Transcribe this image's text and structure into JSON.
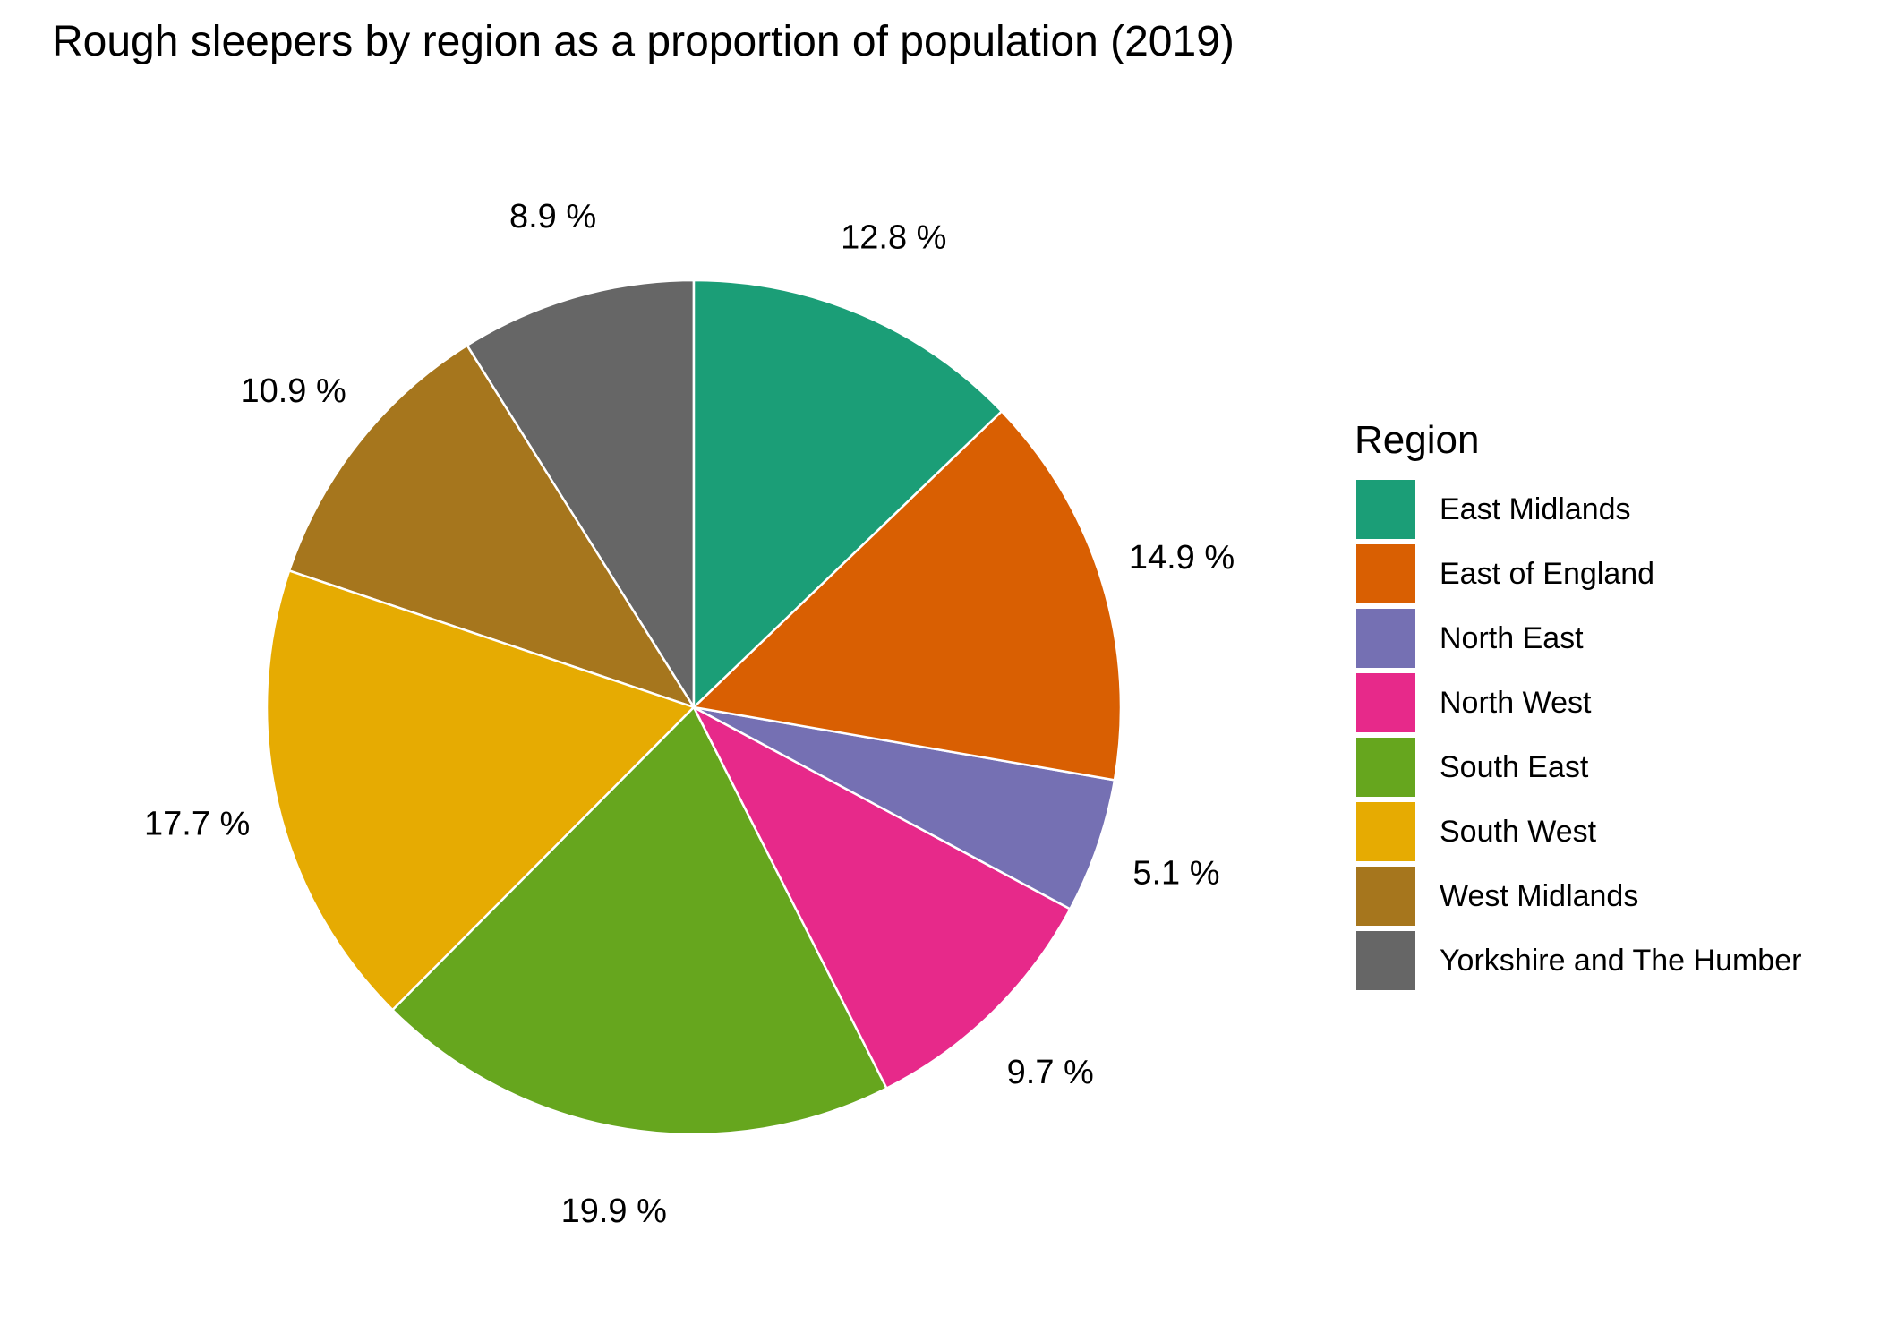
{
  "chart_data": {
    "type": "pie",
    "title": "Rough sleepers by region as a proportion of population (2019)",
    "legend_title": "Region",
    "legend_position": "right",
    "start": "12 o'clock",
    "direction": "counter-clockwise",
    "slices": [
      {
        "name": "Yorkshire and The Humber",
        "value": 8.9,
        "label": "8.9 %",
        "color": "#666666"
      },
      {
        "name": "West Midlands",
        "value": 10.9,
        "label": "10.9 %",
        "color": "#A6761D"
      },
      {
        "name": "South West",
        "value": 17.7,
        "label": "17.7 %",
        "color": "#E6AB02"
      },
      {
        "name": "South East",
        "value": 19.9,
        "label": "19.9 %",
        "color": "#66A61E"
      },
      {
        "name": "North West",
        "value": 9.7,
        "label": "9.7 %",
        "color": "#E7298A"
      },
      {
        "name": "North East",
        "value": 5.1,
        "label": "5.1 %",
        "color": "#7570B3"
      },
      {
        "name": "East of England",
        "value": 14.9,
        "label": "14.9 %",
        "color": "#D95F02"
      },
      {
        "name": "East Midlands",
        "value": 12.8,
        "label": "12.8 %",
        "color": "#1B9E77"
      }
    ],
    "legend": [
      {
        "name": "East Midlands",
        "color": "#1B9E77"
      },
      {
        "name": "East of England",
        "color": "#D95F02"
      },
      {
        "name": "North East",
        "color": "#7570B3"
      },
      {
        "name": "North West",
        "color": "#E7298A"
      },
      {
        "name": "South East",
        "color": "#66A61E"
      },
      {
        "name": "South West",
        "color": "#E6AB02"
      },
      {
        "name": "West Midlands",
        "color": "#A6761D"
      },
      {
        "name": "Yorkshire and The Humber",
        "color": "#666666"
      }
    ]
  }
}
